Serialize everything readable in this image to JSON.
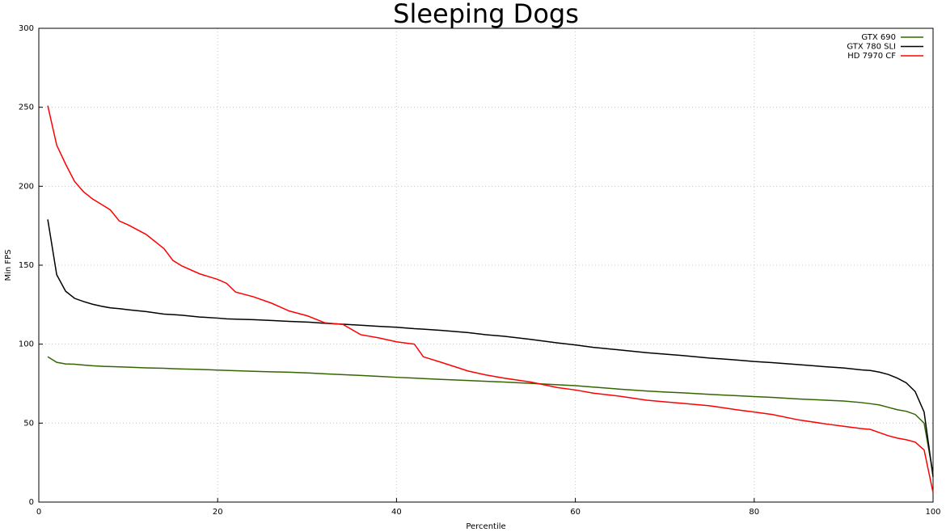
{
  "chart_data": {
    "type": "line",
    "title": "Sleeping Dogs",
    "x_label": "Percentile",
    "y_label": "Min FPS",
    "x": [
      1,
      2,
      3,
      4,
      5,
      6,
      7,
      8,
      9,
      10,
      12,
      14,
      15,
      16,
      18,
      20,
      21,
      22,
      24,
      26,
      28,
      30,
      32,
      34,
      36,
      38,
      40,
      42,
      43,
      45,
      48,
      50,
      52,
      55,
      58,
      60,
      62,
      65,
      68,
      70,
      72,
      75,
      78,
      80,
      82,
      85,
      88,
      90,
      92,
      93,
      94,
      95,
      96,
      97,
      98,
      99,
      100
    ],
    "series": [
      {
        "name": "GTX 690",
        "color": "#336600",
        "values": [
          92,
          88.5,
          87.5,
          87.3,
          86.8,
          86.3,
          86,
          85.8,
          85.6,
          85.4,
          85,
          84.7,
          84.5,
          84.3,
          84,
          83.6,
          83.4,
          83.2,
          82.8,
          82.5,
          82.2,
          81.8,
          81.2,
          80.7,
          80.2,
          79.6,
          79,
          78.5,
          78.2,
          77.7,
          77,
          76.5,
          76,
          75.2,
          74.3,
          73.7,
          72.8,
          71.5,
          70.3,
          69.7,
          69.2,
          68.2,
          67.4,
          66.8,
          66.3,
          65.3,
          64.5,
          64,
          63,
          62.3,
          61.5,
          60,
          58.5,
          57.5,
          55.5,
          50,
          18
        ]
      },
      {
        "name": "GTX 780 SLI",
        "color": "#000000",
        "values": [
          179,
          144,
          133.5,
          129,
          127,
          125.3,
          124,
          123,
          122.5,
          121.8,
          120.6,
          119,
          118.7,
          118.3,
          117.2,
          116.5,
          116,
          115.8,
          115.5,
          115,
          114.4,
          114,
          113.2,
          112.6,
          112,
          111.3,
          110.7,
          109.8,
          109.5,
          108.7,
          107.3,
          106,
          105,
          103,
          100.8,
          99.5,
          98,
          96.3,
          94.6,
          93.7,
          92.8,
          91.2,
          90,
          89,
          88.3,
          87,
          85.7,
          84.9,
          83.7,
          83.3,
          82.3,
          80.8,
          78.5,
          75.5,
          70,
          57,
          16
        ]
      },
      {
        "name": "HD 7970 CF",
        "color": "#ff0000",
        "values": [
          251,
          226,
          214,
          203,
          196.5,
          192,
          188.5,
          185,
          178,
          175.5,
          169.5,
          160.5,
          153,
          149.5,
          144.5,
          141,
          138.5,
          133,
          130,
          126,
          121,
          118,
          113.5,
          112.5,
          106,
          104,
          101.5,
          100,
          92,
          88.5,
          83,
          80.5,
          78.5,
          76,
          72.5,
          71,
          69,
          67,
          64.5,
          63.5,
          62.5,
          61,
          58.5,
          57,
          55.5,
          52,
          49.5,
          48,
          46.5,
          46,
          44,
          42,
          40.5,
          39.5,
          38,
          33,
          6
        ]
      }
    ],
    "xlim": [
      0,
      100
    ],
    "xticks": [
      0,
      20,
      40,
      60,
      80,
      100
    ],
    "ylim": [
      0,
      300
    ],
    "yticks": [
      0,
      50,
      100,
      150,
      200,
      250,
      300
    ],
    "grid": true,
    "legend": "top-right"
  }
}
